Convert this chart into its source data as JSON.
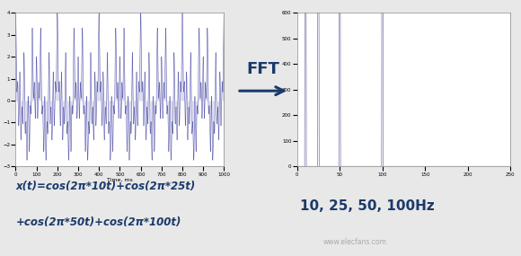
{
  "bg_color": "#e8e8e8",
  "time_signal": {
    "freqs": [
      10,
      25,
      50,
      100
    ],
    "sample_rate": 5000,
    "ylim": [
      -3,
      4
    ],
    "xlim": [
      0,
      1000
    ],
    "xlabel": "Time, ms",
    "xticks": [
      0,
      100,
      200,
      300,
      400,
      500,
      600,
      700,
      800,
      900,
      1000
    ],
    "yticks": [
      -3,
      -2,
      -1,
      0,
      1,
      2,
      3,
      4
    ],
    "line_color": "#5555aa",
    "fill_color": "#aaaadd"
  },
  "fft_signal": {
    "ylim": [
      0,
      600
    ],
    "xlim": [
      0,
      250
    ],
    "xticks": [
      0,
      50,
      100,
      150,
      200,
      250
    ],
    "yticks": [
      0,
      100,
      200,
      300,
      400,
      500,
      600
    ],
    "line_color": "#7777aa"
  },
  "arrow": {
    "color": "#1a3a6b",
    "label": "FFT",
    "label_color": "#1a3a6b",
    "label_fontsize": 13,
    "label_fontweight": "bold"
  },
  "equation": {
    "text1": "x(t)=cos(2π*10t)+cos(2π*25t)",
    "text2": "+cos(2π*50t)+cos(2π*100t)",
    "color": "#1a3a6b",
    "fontsize": 8.5,
    "fontstyle": "italic",
    "fontweight": "bold"
  },
  "freq_label": {
    "text": "10, 25, 50, 100Hz",
    "color": "#1a3a6b",
    "fontsize": 11,
    "fontweight": "bold"
  },
  "watermark": {
    "text": "www.elecfans.com",
    "color": "#aaaaaa",
    "fontsize": 5.5
  }
}
